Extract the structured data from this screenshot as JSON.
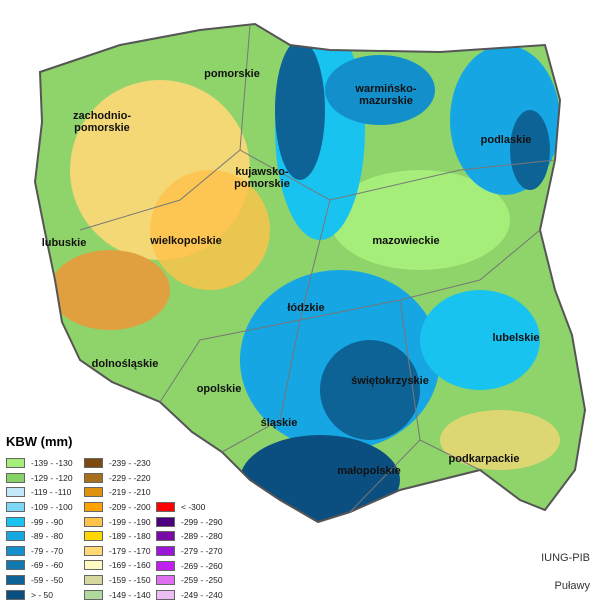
{
  "legend": {
    "title": "KBW (mm)",
    "columns": [
      [
        {
          "label": "-139 - -130",
          "color": "#a6ee7a"
        },
        {
          "label": "-129 - -120",
          "color": "#86d466"
        },
        {
          "label": "-119 - -110",
          "color": "#c4e8fa"
        },
        {
          "label": "-109 - -100",
          "color": "#7fd7f7"
        },
        {
          "label": "-99 - -90",
          "color": "#19c3f0"
        },
        {
          "label": "-89 - -80",
          "color": "#16a6e3"
        },
        {
          "label": "-79 - -70",
          "color": "#138fcb"
        },
        {
          "label": "-69 - -60",
          "color": "#1179ad"
        },
        {
          "label": "-59 - -50",
          "color": "#0e6396"
        },
        {
          "label": "> - 50",
          "color": "#0b4f80"
        }
      ],
      [
        {
          "label": "-239 - -230",
          "color": "#7a4a10"
        },
        {
          "label": "-229 - -220",
          "color": "#a8701c"
        },
        {
          "label": "-219 - -210",
          "color": "#e0920f"
        },
        {
          "label": "-209 - -200",
          "color": "#ffa200"
        },
        {
          "label": "-199 - -190",
          "color": "#ffc24a"
        },
        {
          "label": "-189 - -180",
          "color": "#ffd800"
        },
        {
          "label": "-179 - -170",
          "color": "#ffd878"
        },
        {
          "label": "-169 - -160",
          "color": "#fffac0"
        },
        {
          "label": "-159 - -150",
          "color": "#d9d7a0"
        },
        {
          "label": "-149 - -140",
          "color": "#b0d9a0"
        }
      ],
      [
        {
          "label": "< -300",
          "color": "#ff0000"
        },
        {
          "label": "-299 - -290",
          "color": "#4b0080"
        },
        {
          "label": "-289 - -280",
          "color": "#7a0aa8"
        },
        {
          "label": "-279 - -270",
          "color": "#9b16d8"
        },
        {
          "label": "-269 - -260",
          "color": "#c020f0"
        },
        {
          "label": "-259 - -250",
          "color": "#de70f0"
        },
        {
          "label": "-249 - -240",
          "color": "#ecbcf5"
        }
      ]
    ]
  },
  "regions": [
    {
      "name": "pomorskie",
      "label": "pomorskie"
    },
    {
      "name": "warminsko-mazurskie",
      "label": "warmińsko-\nmazurskie"
    },
    {
      "name": "zachodniopomorskie",
      "label": "zachodnio-\npomorskie"
    },
    {
      "name": "podlaskie",
      "label": "podlaskie"
    },
    {
      "name": "kujawsko-pomorskie",
      "label": "kujawsko-\npomorskie"
    },
    {
      "name": "lubuskie",
      "label": "lubuskie"
    },
    {
      "name": "wielkopolskie",
      "label": "wielkopolskie"
    },
    {
      "name": "mazowieckie",
      "label": "mazowieckie"
    },
    {
      "name": "lodzkie",
      "label": "łódzkie"
    },
    {
      "name": "lubelskie",
      "label": "lubelskie"
    },
    {
      "name": "dolnoslaskie",
      "label": "dolnośląskie"
    },
    {
      "name": "opolskie",
      "label": "opolskie"
    },
    {
      "name": "swietokrzyskie",
      "label": "świętokrzyskie"
    },
    {
      "name": "slaskie",
      "label": "śląskie"
    },
    {
      "name": "malopolskie",
      "label": "małopolskie"
    },
    {
      "name": "podkarpackie",
      "label": "podkarpackie"
    }
  ],
  "credit": {
    "org": "IUNG-PIB",
    "place": "Puławy"
  }
}
